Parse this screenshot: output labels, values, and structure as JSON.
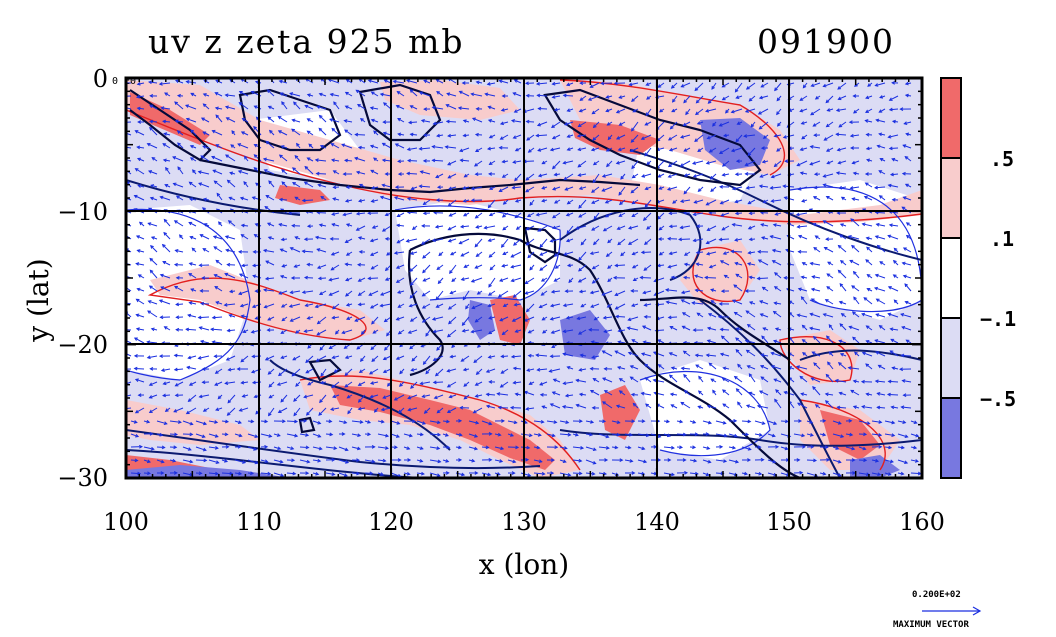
{
  "title": {
    "left": "uv z zeta 925 mb",
    "right": "091900"
  },
  "origin_label": "0 E0",
  "chart_data": {
    "type": "heatmap",
    "title": "uv z zeta 925 mb",
    "xlabel": "x (lon)",
    "ylabel": "y (lat)",
    "xlim": [
      100,
      160
    ],
    "ylim": [
      -30,
      0
    ],
    "x_ticks": [
      "100",
      "110",
      "120",
      "130",
      "140",
      "150",
      "160"
    ],
    "y_ticks": [
      "0",
      "−10",
      "−20",
      "−30"
    ],
    "grid": true,
    "colorbar": {
      "levels": [
        ".5",
        ".1",
        "−.1",
        "−.5"
      ],
      "colors": [
        "#f06a6a",
        "#f8cccc",
        "#ffffff",
        "#dcdcf4",
        "#7878e0"
      ]
    },
    "vector_scale": {
      "value": "0.200E+02",
      "caption": "MAXIMUM VECTOR"
    }
  },
  "colors": {
    "positive_strong": "#f06a6a",
    "positive_weak": "#f8cccc",
    "negative_weak": "#dcdcf4",
    "negative_strong": "#7878e0",
    "vectors": "#1a2fe0",
    "coast": "#0b1a70"
  }
}
